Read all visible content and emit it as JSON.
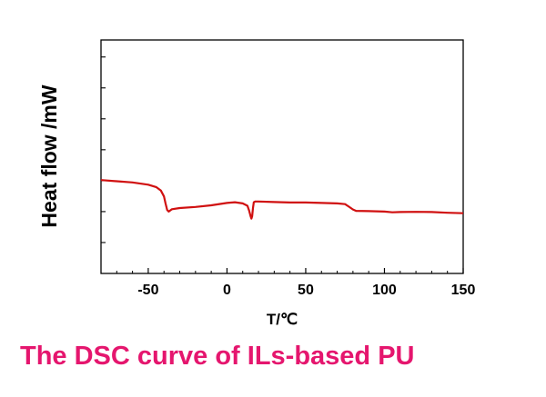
{
  "chart_data": {
    "type": "line",
    "xlabel": "T/℃",
    "ylabel": "Heat flow /mW",
    "xlim": [
      -80,
      150
    ],
    "ylim": [
      0,
      10
    ],
    "xticks": [
      -50,
      0,
      50,
      100,
      150
    ],
    "x_minor_step": 10,
    "y_minor_ticks": 7,
    "y_tick_labels_shown": false,
    "grid": false,
    "line_color": "#d01010",
    "series": [
      {
        "x": [
          -80,
          -70,
          -60,
          -50,
          -45,
          -42,
          -40,
          -39,
          -38,
          -37,
          -36,
          -35,
          -30,
          -20,
          -10,
          0,
          5,
          10,
          13,
          14,
          15,
          15.5,
          16,
          16.5,
          17,
          18,
          20,
          30,
          40,
          50,
          60,
          70,
          75,
          77,
          80,
          82,
          90,
          100,
          105,
          110,
          120,
          130,
          140,
          150
        ],
        "y": [
          4.0,
          3.95,
          3.9,
          3.8,
          3.7,
          3.55,
          3.3,
          3.0,
          2.72,
          2.65,
          2.7,
          2.75,
          2.8,
          2.85,
          2.92,
          3.02,
          3.05,
          3.0,
          2.9,
          2.7,
          2.45,
          2.35,
          2.45,
          2.8,
          3.05,
          3.08,
          3.08,
          3.06,
          3.04,
          3.04,
          3.02,
          3.0,
          2.97,
          2.88,
          2.74,
          2.68,
          2.67,
          2.65,
          2.62,
          2.63,
          2.64,
          2.63,
          2.6,
          2.58
        ]
      }
    ]
  },
  "caption": {
    "text": "The DSC curve of ILs-based PU",
    "color": "#e5166e"
  }
}
